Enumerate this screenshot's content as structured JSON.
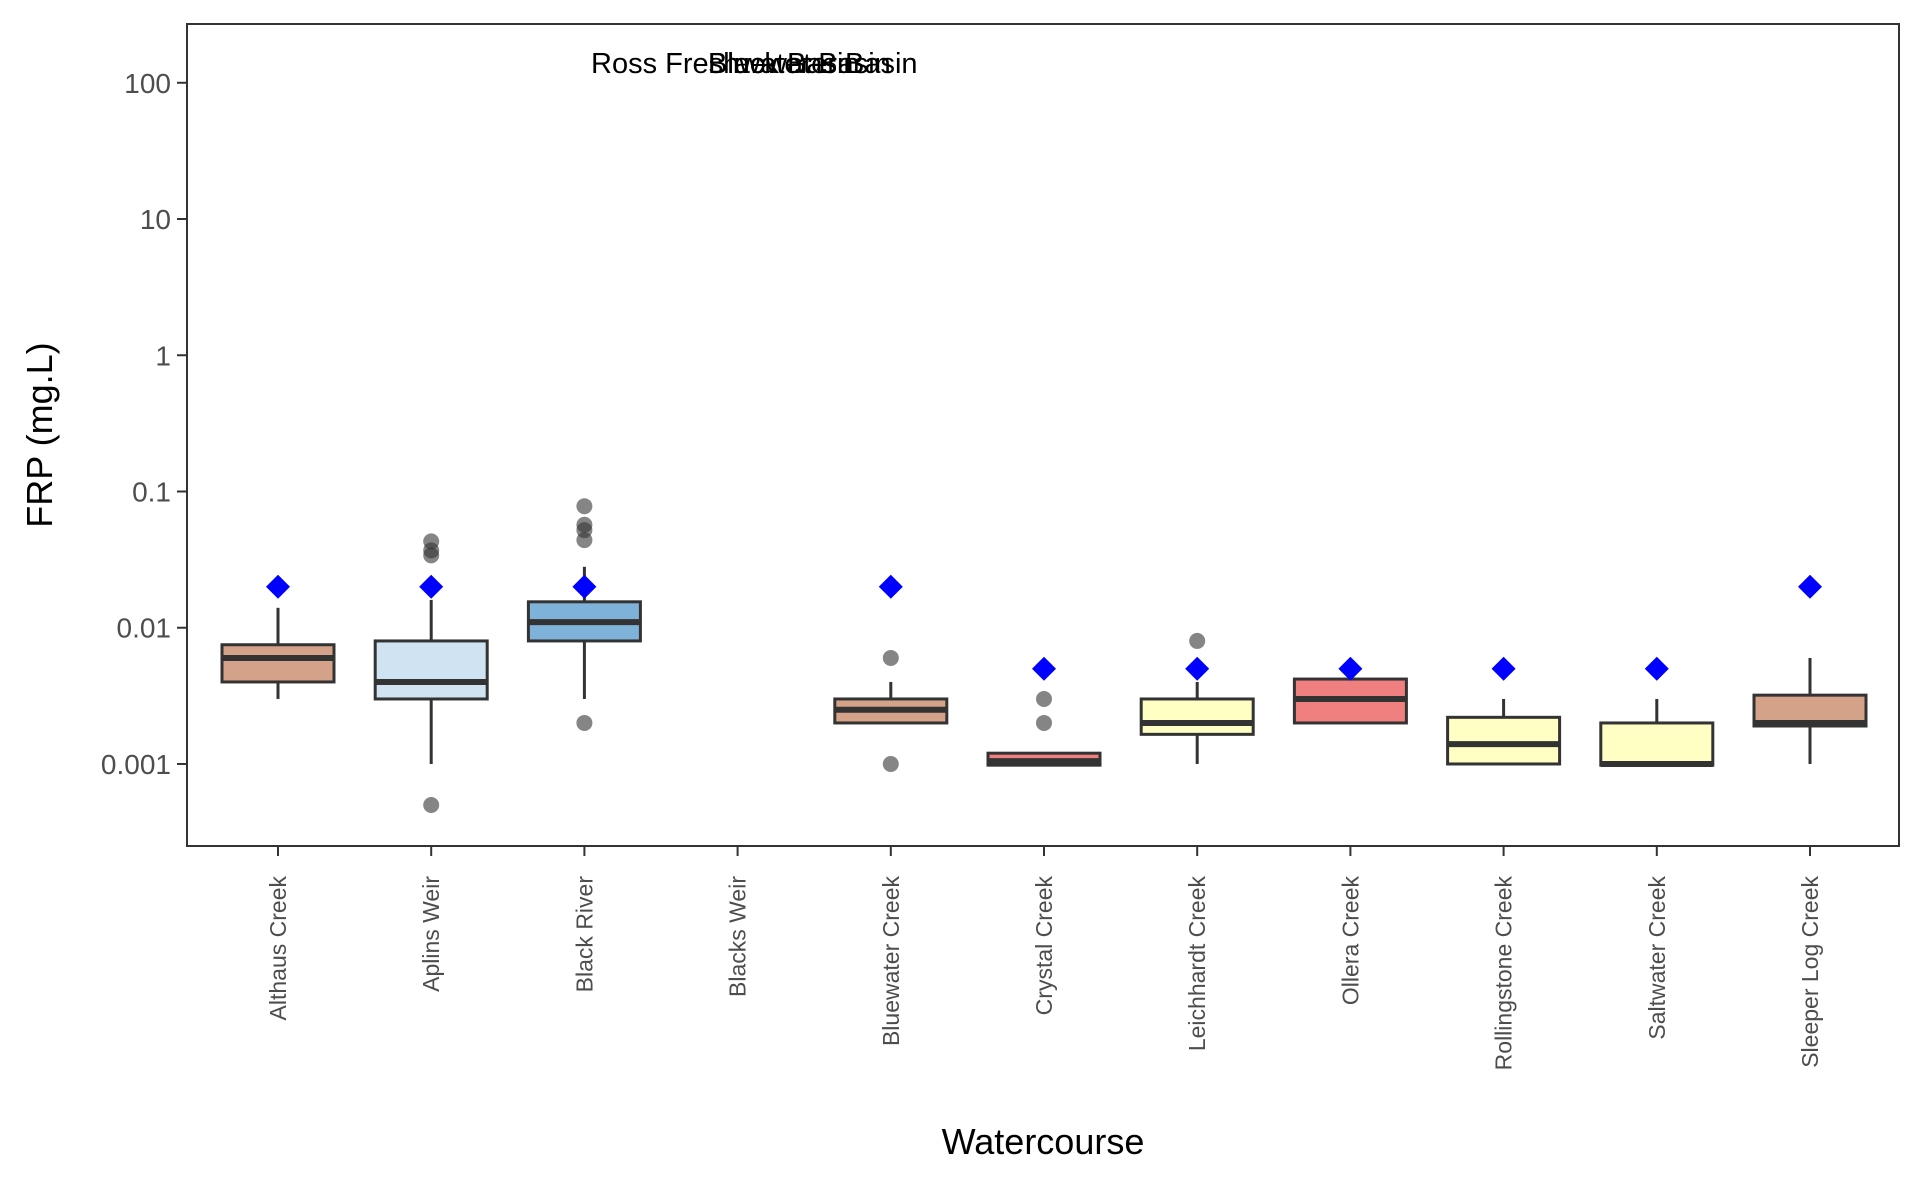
{
  "chart_data": {
    "type": "boxplot",
    "xlabel": "Watercourse",
    "ylabel": "FRP (mg.L)",
    "y_scale": "log10",
    "ylim": [
      0.00025,
      270
    ],
    "y_ticks": [
      0.001,
      0.01,
      0.1,
      1,
      10,
      100
    ],
    "y_tick_labels": [
      "0.001",
      "0.01",
      "0.1",
      "1",
      "10",
      "100"
    ],
    "grid": false,
    "legend": "none",
    "annotations": [
      "Ross Freshwater Basin",
      "Black Basin",
      "Bluewater Basin"
    ],
    "guideline_marker": "blue diamond",
    "guideline_color": "#0000ff",
    "outlier_color": "#333333",
    "box_edge_color": "#333333",
    "categories": [
      "Althaus Creek",
      "Aplins Weir",
      "Black River",
      "Blacks Weir",
      "Bluewater Creek",
      "Crystal Creek",
      "Leichhardt Creek",
      "Ollera Creek",
      "Rollingstone Creek",
      "Saltwater Creek",
      "Sleeper Log Creek"
    ],
    "boxes": [
      {
        "category": "Althaus Creek",
        "basin": "Black Basin",
        "color": "#d4a288",
        "whisker_low": 0.003,
        "q1": 0.004,
        "median": 0.006,
        "q3": 0.0075,
        "whisker_high": 0.014,
        "outliers": [],
        "guideline": 0.02
      },
      {
        "category": "Aplins Weir",
        "basin": "Ross Freshwater Basin",
        "color": "#cfe3f2",
        "whisker_low": 0.001,
        "q1": 0.003,
        "median": 0.004,
        "q3": 0.008,
        "whisker_high": 0.016,
        "outliers": [
          0.0005,
          0.034,
          0.037,
          0.043
        ],
        "guideline": 0.02
      },
      {
        "category": "Black River",
        "basin": "Black Basin",
        "color": "#7fb2d9",
        "whisker_low": 0.003,
        "q1": 0.008,
        "median": 0.011,
        "q3": 0.0155,
        "whisker_high": 0.028,
        "outliers": [
          0.002,
          0.044,
          0.052,
          0.057,
          0.078
        ],
        "guideline": 0.02
      },
      {
        "category": "Blacks Weir",
        "basin": "Ross Freshwater Basin",
        "color": null,
        "whisker_low": null,
        "q1": null,
        "median": null,
        "q3": null,
        "whisker_high": null,
        "outliers": [],
        "guideline": null
      },
      {
        "category": "Bluewater Creek",
        "basin": "Bluewater Basin",
        "color": "#d4a288",
        "whisker_low": 0.002,
        "q1": 0.002,
        "median": 0.0025,
        "q3": 0.003,
        "whisker_high": 0.004,
        "outliers": [
          0.001,
          0.006
        ],
        "guideline": 0.02
      },
      {
        "category": "Crystal Creek",
        "basin": "Black Basin",
        "color": "#f08080",
        "whisker_low": 0.00098,
        "q1": 0.00098,
        "median": 0.00105,
        "q3": 0.0012,
        "whisker_high": 0.0012,
        "outliers": [
          0.002,
          0.003
        ],
        "guideline": 0.005
      },
      {
        "category": "Leichhardt Creek",
        "basin": "Black Basin",
        "color": "#ffffc4",
        "whisker_low": 0.001,
        "q1": 0.00165,
        "median": 0.002,
        "q3": 0.003,
        "whisker_high": 0.004,
        "outliers": [
          0.008
        ],
        "guideline": 0.005
      },
      {
        "category": "Ollera Creek",
        "basin": "Black Basin",
        "color": "#f08080",
        "whisker_low": 0.002,
        "q1": 0.002,
        "median": 0.003,
        "q3": 0.0042,
        "whisker_high": 0.0042,
        "outliers": [],
        "guideline": 0.005
      },
      {
        "category": "Rollingstone Creek",
        "basin": "Black Basin",
        "color": "#ffffc4",
        "whisker_low": 0.001,
        "q1": 0.001,
        "median": 0.0014,
        "q3": 0.0022,
        "whisker_high": 0.003,
        "outliers": [],
        "guideline": 0.005
      },
      {
        "category": "Saltwater Creek",
        "basin": "Black Basin",
        "color": "#ffffc4",
        "whisker_low": 0.00098,
        "q1": 0.00098,
        "median": 0.001,
        "q3": 0.002,
        "whisker_high": 0.003,
        "outliers": [],
        "guideline": 0.005
      },
      {
        "category": "Sleeper Log Creek",
        "basin": "Black Basin",
        "color": "#d4a288",
        "whisker_low": 0.001,
        "q1": 0.0019,
        "median": 0.002,
        "q3": 0.0032,
        "whisker_high": 0.006,
        "outliers": [],
        "guideline": 0.02
      }
    ]
  }
}
